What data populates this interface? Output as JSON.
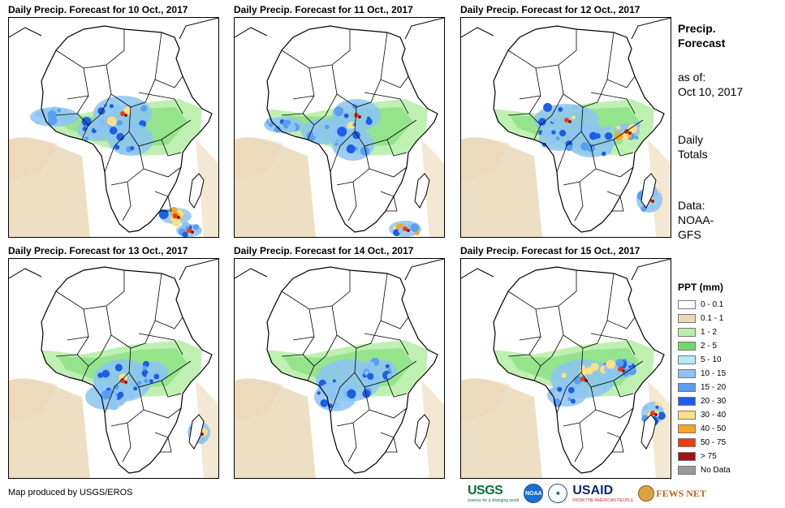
{
  "panels": [
    {
      "title": "Daily Precip. Forecast for 10 Oct., 2017"
    },
    {
      "title": "Daily Precip. Forecast for 11 Oct., 2017"
    },
    {
      "title": "Daily Precip. Forecast for 12 Oct., 2017"
    },
    {
      "title": "Daily Precip. Forecast for 13 Oct., 2017"
    },
    {
      "title": "Daily Precip. Forecast for 14 Oct., 2017"
    },
    {
      "title": "Daily Precip. Forecast for 15 Oct., 2017"
    }
  ],
  "sidebar": {
    "title_line1": "Precip.",
    "title_line2": "Forecast",
    "asof_label": "as of:",
    "asof_date": "Oct 10, 2017",
    "daily_line1": "Daily",
    "daily_line2": "Totals",
    "data_line1": "Data:",
    "data_line2": "NOAA-",
    "data_line3": "GFS"
  },
  "legend": {
    "title": "PPT (mm)",
    "items": [
      {
        "label": "0 - 0.1",
        "color": "#ffffff"
      },
      {
        "label": "0.1 - 1",
        "color": "#ead9b8"
      },
      {
        "label": "1 - 2",
        "color": "#b7f0a8"
      },
      {
        "label": "2 - 5",
        "color": "#72d86e"
      },
      {
        "label": "5 - 10",
        "color": "#b4ecf4"
      },
      {
        "label": "10 - 15",
        "color": "#8dc4f2"
      },
      {
        "label": "15 - 20",
        "color": "#5a9ff0"
      },
      {
        "label": "20 - 30",
        "color": "#1c5ee6"
      },
      {
        "label": "30 - 40",
        "color": "#fbe08a"
      },
      {
        "label": "40 - 50",
        "color": "#f5a623"
      },
      {
        "label": "50 - 75",
        "color": "#ea3d12"
      },
      {
        "label": "> 75",
        "color": "#a01414"
      },
      {
        "label": "No Data",
        "color": "#9a9a9a"
      }
    ]
  },
  "credit": "Map produced by USGS/EROS",
  "logos": {
    "usgs": "USGS",
    "usgs_tagline": "science for a changing world",
    "noaa": "NOAA",
    "usaid": "USAID",
    "usaid_tagline": "FROM THE AMERICAN PEOPLE",
    "fews": "FEWS NET"
  }
}
